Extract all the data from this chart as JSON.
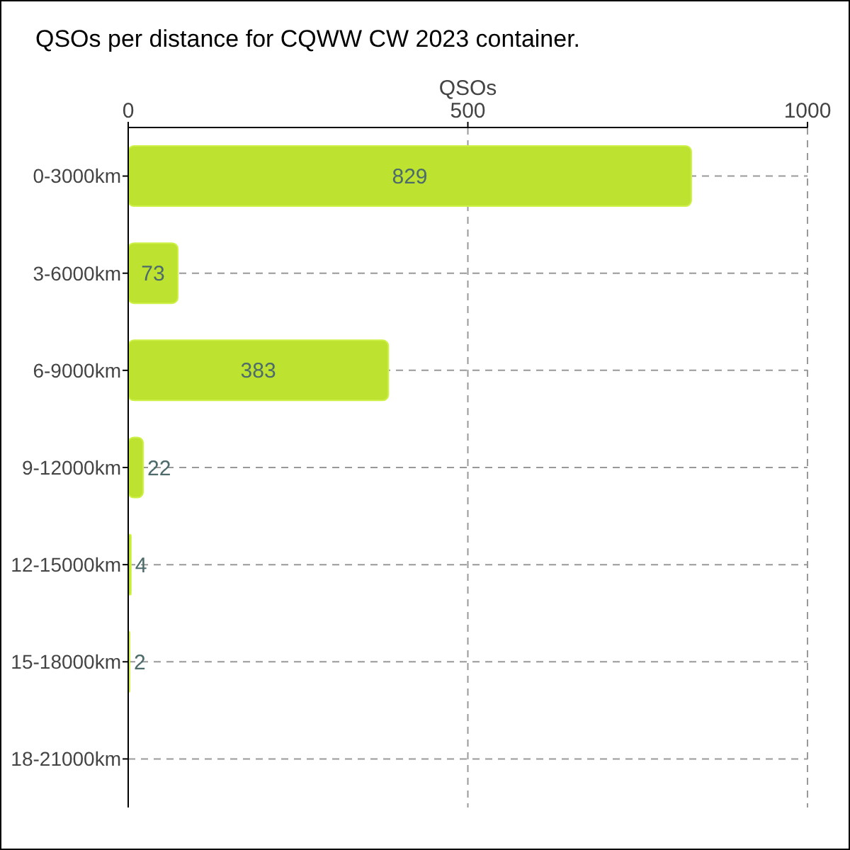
{
  "chart_data": {
    "type": "bar",
    "orientation": "horizontal",
    "title": "QSOs per distance for CQWW CW 2023 container.",
    "xlabel": "QSOs",
    "categories": [
      "0-3000km",
      "3-6000km",
      "6-9000km",
      "9-12000km",
      "12-15000km",
      "15-18000km",
      "18-21000km"
    ],
    "values": [
      829,
      73,
      383,
      22,
      4,
      2,
      0
    ],
    "color": "#bde22f",
    "xlim": [
      0,
      1000
    ],
    "xticks": [
      0,
      500,
      1000
    ],
    "grid": true,
    "value_labels": [
      "829",
      "73",
      "383",
      "22",
      "4",
      "2",
      null
    ]
  }
}
